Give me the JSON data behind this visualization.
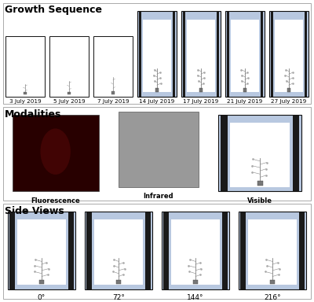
{
  "title_growth": "Growth Sequence",
  "title_modalities": "Modalities",
  "title_side": "Side Views",
  "growth_labels": [
    "3 July 2019",
    "5 July 2019",
    "7 July 2019",
    "14 July 2019",
    "17 July 2019",
    "21 July 2019",
    "27 July 2019"
  ],
  "modality_labels": [
    "Fluorescence",
    "Infrared",
    "Visible"
  ],
  "side_labels": [
    "0°",
    "72°",
    "144°",
    "216°"
  ],
  "bg_color": "#ffffff",
  "section_title_fontsize": 9,
  "label_fontsize": 6,
  "fluor_color": "#280000",
  "fluor_highlight": "#8b1a1a",
  "infrared_color": "#999999",
  "box_edge_color": "#111111",
  "panel_blue": "#b8c8e0",
  "panel_dark": "#4a5060",
  "panel_black": "#1a1a1a",
  "inner_white": "#f0f0f0",
  "section_border_color": "#aaaaaa"
}
